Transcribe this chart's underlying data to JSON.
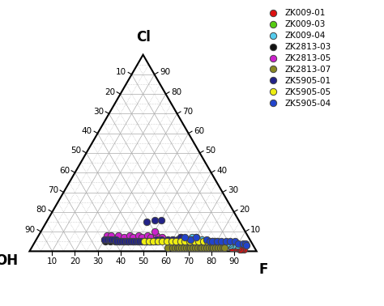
{
  "title_top": "Cl",
  "title_left": "OH",
  "title_right": "F",
  "legend_labels": [
    "ZK009-01",
    "ZK009-03",
    "ZK009-04",
    "ZK2813-03",
    "ZK2813-05",
    "ZK2813-07",
    "ZK5905-01",
    "ZK5905-05",
    "ZK5905-04"
  ],
  "legend_colors": [
    "#dd1111",
    "#55cc11",
    "#55ccee",
    "#111111",
    "#cc22cc",
    "#888822",
    "#222288",
    "#eeee11",
    "#2244cc"
  ],
  "plot_data": {
    "ZK009-01": {
      "color": "#dd1111",
      "points": [
        [
          94,
          1,
          5
        ],
        [
          93,
          1,
          6
        ],
        [
          92,
          1,
          7
        ],
        [
          91,
          2,
          7
        ],
        [
          90,
          2,
          8
        ],
        [
          89,
          2,
          9
        ],
        [
          88,
          2,
          10
        ]
      ]
    },
    "ZK009-03": {
      "color": "#55cc11",
      "points": [
        [
          88,
          3,
          9
        ],
        [
          87,
          3,
          10
        ],
        [
          86,
          3,
          11
        ],
        [
          85,
          4,
          11
        ],
        [
          84,
          4,
          12
        ],
        [
          82,
          4,
          14
        ],
        [
          80,
          5,
          15
        ],
        [
          79,
          5,
          16
        ],
        [
          78,
          5,
          17
        ],
        [
          76,
          5,
          19
        ],
        [
          75,
          5,
          20
        ]
      ]
    },
    "ZK009-04": {
      "color": "#55ccee",
      "points": [
        [
          90,
          3,
          7
        ],
        [
          88,
          3,
          9
        ],
        [
          87,
          3,
          10
        ],
        [
          86,
          4,
          10
        ],
        [
          85,
          4,
          11
        ],
        [
          83,
          4,
          13
        ],
        [
          82,
          4,
          14
        ],
        [
          80,
          4,
          16
        ],
        [
          79,
          5,
          16
        ],
        [
          78,
          5,
          17
        ],
        [
          76,
          5,
          19
        ],
        [
          75,
          5,
          20
        ],
        [
          73,
          6,
          21
        ],
        [
          70,
          7,
          23
        ],
        [
          68,
          7,
          25
        ],
        [
          66,
          6,
          28
        ]
      ]
    },
    "ZK2813-03": {
      "color": "#111111",
      "points": [
        [
          30,
          6,
          64
        ],
        [
          31,
          5,
          64
        ],
        [
          32,
          6,
          62
        ],
        [
          33,
          5,
          62
        ],
        [
          34,
          6,
          60
        ],
        [
          35,
          5,
          60
        ],
        [
          36,
          6,
          58
        ],
        [
          37,
          5,
          58
        ],
        [
          38,
          6,
          56
        ],
        [
          39,
          5,
          56
        ],
        [
          40,
          6,
          54
        ],
        [
          41,
          5,
          54
        ],
        [
          42,
          6,
          52
        ],
        [
          43,
          5,
          52
        ],
        [
          44,
          6,
          50
        ],
        [
          45,
          5,
          50
        ],
        [
          46,
          6,
          48
        ],
        [
          47,
          5,
          48
        ],
        [
          48,
          6,
          46
        ],
        [
          49,
          5,
          46
        ],
        [
          50,
          6,
          44
        ],
        [
          51,
          5,
          44
        ],
        [
          52,
          6,
          42
        ],
        [
          53,
          5,
          42
        ],
        [
          55,
          6,
          39
        ]
      ]
    },
    "ZK2813-05": {
      "color": "#cc22cc",
      "points": [
        [
          30,
          8,
          62
        ],
        [
          32,
          8,
          60
        ],
        [
          35,
          8,
          57
        ],
        [
          38,
          7,
          55
        ],
        [
          40,
          8,
          52
        ],
        [
          42,
          7,
          51
        ],
        [
          44,
          8,
          48
        ],
        [
          46,
          7,
          47
        ],
        [
          48,
          8,
          44
        ],
        [
          50,
          7,
          43
        ],
        [
          52,
          8,
          40
        ],
        [
          55,
          7,
          38
        ],
        [
          60,
          6,
          34
        ],
        [
          63,
          7,
          30
        ],
        [
          65,
          6,
          29
        ],
        [
          68,
          6,
          26
        ],
        [
          50,
          10,
          40
        ]
      ]
    },
    "ZK2813-07": {
      "color": "#888822",
      "points": [
        [
          60,
          2,
          38
        ],
        [
          62,
          2,
          36
        ],
        [
          63,
          2,
          35
        ],
        [
          64,
          2,
          34
        ],
        [
          65,
          2,
          33
        ],
        [
          66,
          2,
          32
        ],
        [
          67,
          2,
          31
        ],
        [
          68,
          2,
          30
        ],
        [
          69,
          2,
          29
        ],
        [
          70,
          2,
          28
        ],
        [
          71,
          2,
          27
        ],
        [
          72,
          2,
          26
        ],
        [
          73,
          2,
          25
        ],
        [
          74,
          2,
          24
        ],
        [
          75,
          2,
          23
        ],
        [
          76,
          2,
          22
        ],
        [
          77,
          2,
          21
        ],
        [
          78,
          2,
          20
        ],
        [
          79,
          2,
          19
        ],
        [
          80,
          2,
          18
        ],
        [
          81,
          2,
          17
        ],
        [
          82,
          2,
          16
        ],
        [
          83,
          2,
          15
        ],
        [
          84,
          2,
          14
        ],
        [
          85,
          2,
          13
        ]
      ]
    },
    "ZK5905-01": {
      "color": "#222288",
      "points": [
        [
          30,
          6,
          64
        ],
        [
          31,
          6,
          63
        ],
        [
          32,
          6,
          62
        ],
        [
          33,
          6,
          61
        ],
        [
          34,
          6,
          60
        ],
        [
          35,
          6,
          59
        ],
        [
          36,
          5,
          59
        ],
        [
          37,
          5,
          58
        ],
        [
          38,
          5,
          57
        ],
        [
          39,
          5,
          56
        ],
        [
          40,
          5,
          55
        ],
        [
          41,
          5,
          54
        ],
        [
          42,
          5,
          53
        ],
        [
          43,
          5,
          52
        ],
        [
          44,
          5,
          51
        ],
        [
          45,
          5,
          50
        ],
        [
          46,
          5,
          49
        ],
        [
          47,
          5,
          48
        ],
        [
          48,
          5,
          47
        ],
        [
          49,
          5,
          46
        ],
        [
          50,
          5,
          45
        ],
        [
          51,
          5,
          44
        ],
        [
          52,
          5,
          43
        ],
        [
          53,
          6,
          41
        ],
        [
          55,
          6,
          39
        ],
        [
          58,
          6,
          36
        ],
        [
          60,
          6,
          34
        ],
        [
          62,
          6,
          32
        ],
        [
          63,
          7,
          30
        ],
        [
          44,
          15,
          41
        ],
        [
          47,
          16,
          37
        ],
        [
          50,
          16,
          34
        ]
      ]
    },
    "ZK5905-05": {
      "color": "#eeee11",
      "points": [
        [
          48,
          5,
          47
        ],
        [
          50,
          5,
          45
        ],
        [
          52,
          5,
          43
        ],
        [
          54,
          5,
          41
        ],
        [
          56,
          5,
          39
        ],
        [
          58,
          5,
          37
        ],
        [
          60,
          5,
          35
        ],
        [
          62,
          5,
          33
        ],
        [
          64,
          5,
          31
        ],
        [
          66,
          5,
          29
        ],
        [
          68,
          5,
          27
        ],
        [
          70,
          5,
          25
        ],
        [
          72,
          5,
          23
        ],
        [
          74,
          5,
          21
        ],
        [
          76,
          5,
          19
        ]
      ]
    },
    "ZK5905-04": {
      "color": "#2244cc",
      "points": [
        [
          75,
          6,
          19
        ],
        [
          77,
          5,
          18
        ],
        [
          78,
          5,
          17
        ],
        [
          80,
          5,
          15
        ],
        [
          82,
          5,
          13
        ],
        [
          84,
          5,
          11
        ],
        [
          86,
          5,
          9
        ],
        [
          88,
          5,
          7
        ],
        [
          90,
          4,
          6
        ],
        [
          92,
          4,
          4
        ],
        [
          93,
          4,
          3
        ],
        [
          94,
          3,
          3
        ],
        [
          68,
          6,
          26
        ],
        [
          70,
          7,
          23
        ],
        [
          65,
          7,
          28
        ]
      ]
    }
  },
  "tick_values": [
    10,
    20,
    30,
    40,
    50,
    60,
    70,
    80,
    90
  ],
  "marker_size": 6,
  "marker_edgewidth": 0.7,
  "marker_edgecolor": "#444444"
}
